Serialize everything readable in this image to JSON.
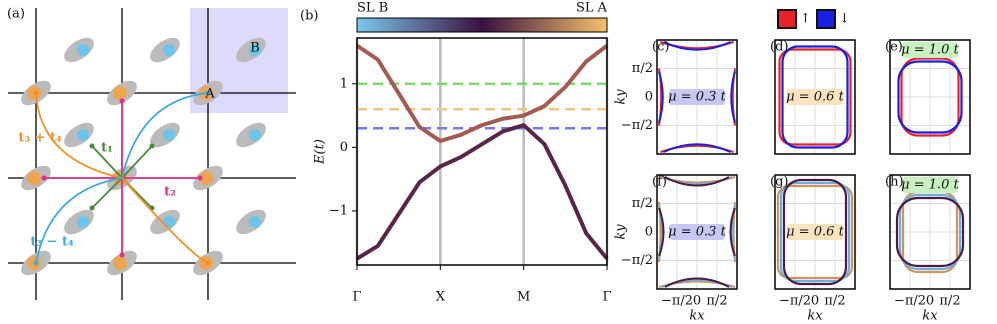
{
  "panel_a": {
    "label": "(a)",
    "site_a": "A",
    "site_b": "B",
    "hop_34_plus": "t₃ + t₄",
    "hop_1": "t₁",
    "hop_2": "t₂",
    "hop_34_minus": "t₃ − t₄"
  },
  "chart_data": {
    "type": "line",
    "panel_label": "(b)",
    "ylabel": "E(t)",
    "colorbar": {
      "labels": [
        "SL B",
        "SL A"
      ]
    },
    "x": [
      0,
      0.25,
      0.5,
      0.75,
      1,
      1.25,
      1.5,
      1.75,
      2,
      2.25,
      2.5,
      2.75,
      3
    ],
    "series": [
      {
        "color": "#a35a52",
        "values": [
          1.6,
          1.38,
          0.85,
          0.32,
          0.1,
          0.2,
          0.35,
          0.45,
          0.5,
          0.65,
          0.95,
          1.35,
          1.6
        ]
      },
      {
        "color": "#5a2448",
        "values": [
          -1.75,
          -1.55,
          -1.05,
          -0.55,
          -0.3,
          -0.15,
          0.05,
          0.25,
          0.35,
          0.05,
          -0.6,
          -1.35,
          -1.75
        ]
      }
    ],
    "hlines": [
      {
        "value": 1,
        "color": "#77dd66"
      },
      {
        "value": 0.6,
        "color": "#f5c77e"
      },
      {
        "value": 0.3,
        "color": "#7777ee"
      }
    ],
    "xlim": [
      0,
      3
    ],
    "ylim": [
      -1.85,
      1.72
    ],
    "xticks": [
      {
        "value": 0,
        "label": "Γ"
      },
      {
        "value": 1,
        "label": "X"
      },
      {
        "value": 2,
        "label": "M"
      },
      {
        "value": 3,
        "label": "Γ"
      }
    ],
    "yticks": [
      {
        "value": -1,
        "label": "−1"
      },
      0,
      1
    ],
    "xgrid": true
  },
  "legend": {
    "up": "↑",
    "down": "↓"
  },
  "fermi": {
    "xticks": [
      "−π/2",
      "0",
      "π/2"
    ],
    "yticks": [
      "π/2",
      "0",
      "−π/2"
    ],
    "xlabel": "kx",
    "ylabel": "ky",
    "panels": [
      {
        "label": "(c)",
        "mu": "μ = 0.3 t",
        "mu_color": "#c8c8f4"
      },
      {
        "label": "(d)",
        "mu": "μ = 0.6 t",
        "mu_color": "#fbe3c0"
      },
      {
        "label": "(e)",
        "mu": "μ = 1.0 t",
        "mu_color": "#c8f0c0"
      },
      {
        "label": "(f)",
        "mu": "μ = 0.3 t",
        "mu_color": "#c8c8f4"
      },
      {
        "label": "(g)",
        "mu": "μ = 0.6 t",
        "mu_color": "#fbe3c0"
      },
      {
        "label": "(h)",
        "mu": "μ = 1.0 t",
        "mu_color": "#c8f0c0"
      }
    ]
  }
}
